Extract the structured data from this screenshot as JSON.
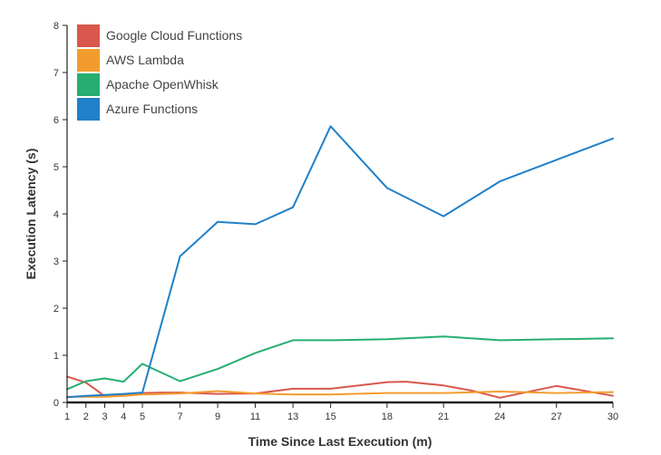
{
  "chart_data": {
    "type": "line",
    "title": "",
    "xlabel": "Time Since Last Execution (m)",
    "ylabel": "Execution Latency (s)",
    "xlim": [
      1,
      30
    ],
    "ylim": [
      0,
      8
    ],
    "x_ticks": [
      1,
      2,
      3,
      4,
      5,
      7,
      9,
      11,
      13,
      15,
      18,
      21,
      24,
      27,
      30
    ],
    "y_ticks": [
      0,
      1,
      2,
      3,
      4,
      5,
      6,
      7,
      8
    ],
    "grid": false,
    "legend_position": "top-left",
    "series": [
      {
        "name": "Google Cloud Functions",
        "color": "#d9574c",
        "points": [
          [
            1,
            0.55
          ],
          [
            2,
            0.42
          ],
          [
            2.5,
            0.28
          ],
          [
            3,
            0.13
          ],
          [
            4,
            0.17
          ],
          [
            5,
            0.2
          ],
          [
            6,
            0.21
          ],
          [
            7,
            0.21
          ],
          [
            9,
            0.18
          ],
          [
            11,
            0.19
          ],
          [
            13,
            0.29
          ],
          [
            15,
            0.29
          ],
          [
            18,
            0.43
          ],
          [
            19,
            0.44
          ],
          [
            21,
            0.36
          ],
          [
            22.5,
            0.25
          ],
          [
            24,
            0.1
          ],
          [
            27,
            0.35
          ],
          [
            30,
            0.14
          ]
        ]
      },
      {
        "name": "AWS Lambda",
        "color": "#f39c2e",
        "points": [
          [
            1,
            0.12
          ],
          [
            3,
            0.12
          ],
          [
            4,
            0.14
          ],
          [
            5,
            0.17
          ],
          [
            7,
            0.19
          ],
          [
            9,
            0.24
          ],
          [
            11,
            0.19
          ],
          [
            13,
            0.17
          ],
          [
            15,
            0.17
          ],
          [
            18,
            0.2
          ],
          [
            21,
            0.2
          ],
          [
            24,
            0.23
          ],
          [
            27,
            0.2
          ],
          [
            30,
            0.22
          ]
        ]
      },
      {
        "name": "Apache OpenWhisk",
        "color": "#27ae70",
        "points": [
          [
            1,
            0.28
          ],
          [
            2,
            0.45
          ],
          [
            3,
            0.51
          ],
          [
            4,
            0.44
          ],
          [
            5,
            0.82
          ],
          [
            7,
            0.45
          ],
          [
            9,
            0.71
          ],
          [
            11,
            1.05
          ],
          [
            13,
            1.32
          ],
          [
            15,
            1.32
          ],
          [
            18,
            1.34
          ],
          [
            21,
            1.4
          ],
          [
            24,
            1.32
          ],
          [
            27,
            1.34
          ],
          [
            30,
            1.36
          ]
        ]
      },
      {
        "name": "Azure Functions",
        "color": "#2080c8",
        "points": [
          [
            1,
            0.11
          ],
          [
            2,
            0.14
          ],
          [
            3,
            0.16
          ],
          [
            4,
            0.18
          ],
          [
            5,
            0.21
          ],
          [
            7,
            3.1
          ],
          [
            9,
            3.83
          ],
          [
            11,
            3.78
          ],
          [
            13,
            4.14
          ],
          [
            15,
            5.86
          ],
          [
            18,
            4.55
          ],
          [
            21,
            3.95
          ],
          [
            24,
            4.69
          ],
          [
            30,
            5.6
          ]
        ]
      }
    ]
  }
}
